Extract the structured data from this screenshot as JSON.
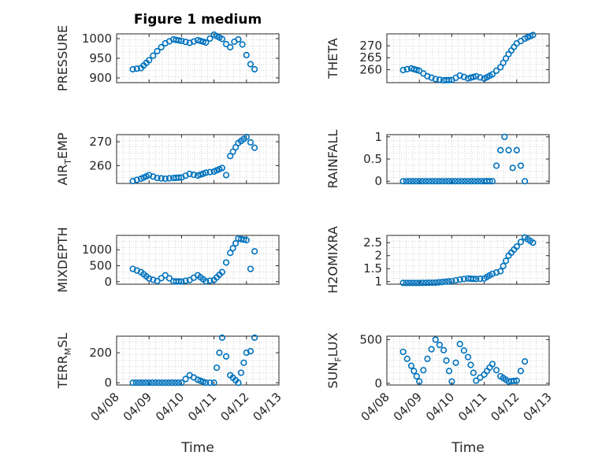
{
  "figure_title": "Figure 1 medium",
  "xlabel": "Time",
  "x_tick_labels": [
    "04/08",
    "04/09",
    "04/10",
    "04/11",
    "04/12",
    "04/13"
  ],
  "marker_color": "#0072BD",
  "grid": "minor dotted",
  "chart_data": [
    {
      "type": "scatter",
      "ylabel_main": "PRESSURE",
      "ylabel_sub": "",
      "ylabel_tail": "",
      "ylim": [
        888,
        1012
      ],
      "yticks": [
        900,
        950,
        1000
      ],
      "x": [
        "04/08 12:00",
        "04/08 18:00",
        "04/09 00:00",
        "04/09 06:00",
        "04/09 12:00",
        "04/09 18:00",
        "04/10 00:00",
        "04/10 06:00",
        "04/10 12:00",
        "04/10 18:00",
        "04/11 00:00",
        "04/11 06:00",
        "04/11 09:00",
        "04/11 12:00",
        "04/11 15:00",
        "04/11 18:00",
        "04/11 21:00",
        "04/12 00:00",
        "04/12 03:00",
        "04/12 06:00"
      ],
      "values": [
        922,
        925,
        945,
        968,
        988,
        998,
        994,
        989,
        996,
        990,
        1010,
        999,
        986,
        978,
        992,
        998,
        985,
        958,
        935,
        922
      ]
    },
    {
      "type": "scatter",
      "ylabel_main": "THETA",
      "ylabel_sub": "",
      "ylabel_tail": "",
      "ylim": [
        254.5,
        275
      ],
      "yticks": [
        260,
        265,
        270
      ],
      "x": [
        "04/08 12:00",
        "04/08 18:00",
        "04/09 00:00",
        "04/09 06:00",
        "04/09 12:00",
        "04/09 18:00",
        "04/10 00:00",
        "04/10 06:00",
        "04/10 12:00",
        "04/10 18:00",
        "04/11 00:00",
        "04/11 06:00",
        "04/11 12:00",
        "04/11 18:00",
        "04/12 00:00",
        "04/12 06:00",
        "04/12 12:00"
      ],
      "values": [
        259.8,
        260.5,
        259.5,
        257.2,
        256.0,
        255.5,
        255.6,
        257.5,
        256.3,
        257.2,
        256.2,
        258.0,
        261.0,
        266.5,
        271.0,
        273.0,
        274.5
      ]
    },
    {
      "type": "scatter",
      "ylabel_main": "AIR",
      "ylabel_sub": "T",
      "ylabel_tail": "EMP",
      "ylim": [
        252.5,
        273
      ],
      "yticks": [
        260,
        270
      ],
      "x": [
        "04/08 12:00",
        "04/08 18:00",
        "04/09 00:00",
        "04/09 06:00",
        "04/09 12:00",
        "04/09 18:00",
        "04/10 00:00",
        "04/10 06:00",
        "04/10 12:00",
        "04/10 18:00",
        "04/11 00:00",
        "04/11 06:00",
        "04/11 09:00",
        "04/11 12:00",
        "04/11 18:00",
        "04/12 00:00",
        "04/12 06:00"
      ],
      "values": [
        253.5,
        254.5,
        256.0,
        254.8,
        254.5,
        254.8,
        255.0,
        256.5,
        255.8,
        257.0,
        257.5,
        259.0,
        256.0,
        264.0,
        269.5,
        272.0,
        267.5
      ]
    },
    {
      "type": "scatter",
      "ylabel_main": "RAINFALL",
      "ylabel_sub": "",
      "ylabel_tail": "",
      "ylim": [
        -0.05,
        1.05
      ],
      "yticks": [
        0,
        0.5,
        1
      ],
      "tick_labels": [
        "0",
        "0.5",
        "1"
      ],
      "x": [
        "04/08 12:00",
        "04/09 00:00",
        "04/09 12:00",
        "04/10 00:00",
        "04/10 12:00",
        "04/11 00:00",
        "04/11 06:00",
        "04/11 12:00",
        "04/11 15:00",
        "04/11 18:00",
        "04/11 21:00",
        "04/12 00:00",
        "04/12 06:00"
      ],
      "values": [
        0,
        0,
        0,
        0,
        0,
        0,
        0,
        0.7,
        1.0,
        0.7,
        0.3,
        0.7,
        0
      ]
    },
    {
      "type": "scatter",
      "ylabel_main": "MIXDEPTH",
      "ylabel_sub": "",
      "ylabel_tail": "",
      "ylim": [
        -80,
        1450
      ],
      "yticks": [
        0,
        500,
        1000
      ],
      "x": [
        "04/08 12:00",
        "04/08 18:00",
        "04/09 00:00",
        "04/09 06:00",
        "04/09 12:00",
        "04/09 18:00",
        "04/10 00:00",
        "04/10 06:00",
        "04/10 12:00",
        "04/10 18:00",
        "04/11 00:00",
        "04/11 06:00",
        "04/11 12:00",
        "04/11 18:00",
        "04/12 00:00",
        "04/12 03:00",
        "04/12 06:00"
      ],
      "values": [
        400,
        300,
        100,
        20,
        200,
        10,
        5,
        50,
        200,
        10,
        50,
        300,
        900,
        1350,
        1300,
        400,
        950
      ]
    },
    {
      "type": "scatter",
      "ylabel_main": "H2OMIXRA",
      "ylabel_sub": "",
      "ylabel_tail": "",
      "ylim": [
        0.9,
        2.78
      ],
      "yticks": [
        1,
        1.5,
        2,
        2.5
      ],
      "tick_labels": [
        "1",
        "1.5",
        "2",
        "2.5"
      ],
      "x": [
        "04/08 12:00",
        "04/09 00:00",
        "04/09 12:00",
        "04/10 00:00",
        "04/10 06:00",
        "04/10 12:00",
        "04/10 18:00",
        "04/11 00:00",
        "04/11 06:00",
        "04/11 12:00",
        "04/11 18:00",
        "04/12 00:00",
        "04/12 06:00",
        "04/12 12:00"
      ],
      "values": [
        0.95,
        0.95,
        0.96,
        1.02,
        1.08,
        1.12,
        1.1,
        1.12,
        1.3,
        1.4,
        2.0,
        2.35,
        2.7,
        2.5
      ]
    },
    {
      "type": "scatter",
      "ylabel_main": "TERR",
      "ylabel_sub": "M",
      "ylabel_tail": "SL",
      "ylim": [
        -15,
        310
      ],
      "yticks": [
        0,
        200
      ],
      "x": [
        "04/08 12:00",
        "04/09 00:00",
        "04/09 12:00",
        "04/10 00:00",
        "04/10 06:00",
        "04/10 12:00",
        "04/10 18:00",
        "04/11 00:00",
        "04/11 06:00",
        "04/11 12:00",
        "04/11 18:00",
        "04/12 00:00",
        "04/12 03:00",
        "04/12 06:00"
      ],
      "values": [
        0,
        0,
        0,
        0,
        50,
        20,
        0,
        0,
        300,
        50,
        0,
        200,
        210,
        300
      ]
    },
    {
      "type": "scatter",
      "ylabel_main": "SUN",
      "ylabel_sub": "F",
      "ylabel_tail": "LUX",
      "ylim": [
        -20,
        540
      ],
      "yticks": [
        0,
        500
      ],
      "x": [
        "04/08 12:00",
        "04/08 18:00",
        "04/09 00:00",
        "04/09 06:00",
        "04/09 12:00",
        "04/09 18:00",
        "04/10 00:00",
        "04/10 06:00",
        "04/10 12:00",
        "04/10 18:00",
        "04/11 00:00",
        "04/11 06:00",
        "04/11 12:00",
        "04/11 18:00",
        "04/12 00:00",
        "04/12 06:00"
      ],
      "values": [
        360,
        200,
        20,
        280,
        500,
        380,
        20,
        450,
        300,
        30,
        100,
        220,
        80,
        20,
        30,
        250
      ]
    }
  ]
}
